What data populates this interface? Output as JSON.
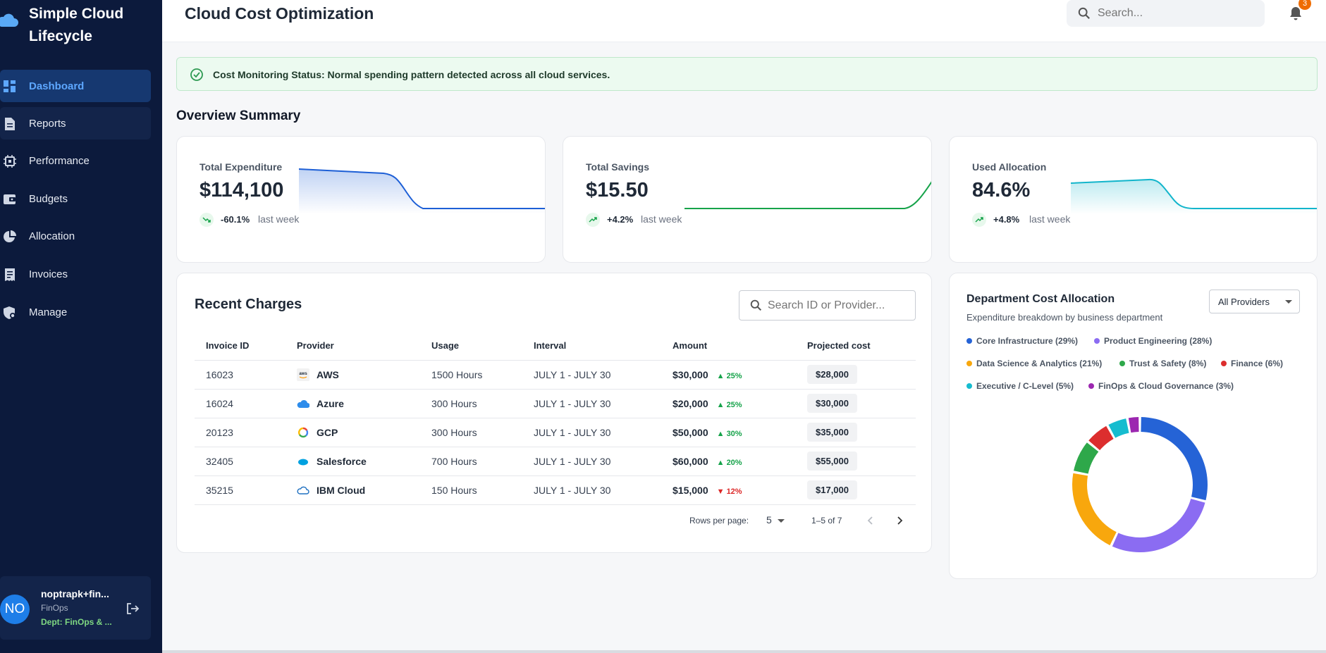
{
  "app": {
    "brand": "Simple Cloud Lifecycle"
  },
  "sidebar": {
    "items": [
      {
        "label": "Dashboard",
        "icon": "dashboard-icon"
      },
      {
        "label": "Reports",
        "icon": "document-icon"
      },
      {
        "label": "Performance",
        "icon": "chip-icon"
      },
      {
        "label": "Budgets",
        "icon": "wallet-icon"
      },
      {
        "label": "Allocation",
        "icon": "pie-chart-icon"
      },
      {
        "label": "Invoices",
        "icon": "receipt-icon"
      },
      {
        "label": "Manage",
        "icon": "shield-settings-icon"
      }
    ],
    "user": {
      "initials": "NO",
      "name": "noptrapk+fin...",
      "role": "FinOps",
      "dept": "Dept: FinOps & ..."
    }
  },
  "header": {
    "title": "Cloud Cost Optimization",
    "search_placeholder": "Search...",
    "notifications": "3"
  },
  "alert": {
    "text": "Cost Monitoring Status: Normal spending pattern detected across all cloud services."
  },
  "overview": {
    "title": "Overview Summary",
    "stats": [
      {
        "label": "Total Expenditure",
        "value": "$114,100",
        "change": "-60.1%",
        "period": "last week",
        "color": "#1d5fd6"
      },
      {
        "label": "Total Savings",
        "value": "$15.50",
        "change": "+4.2%",
        "period": "last week",
        "color": "#16a34a"
      },
      {
        "label": "Used Allocation",
        "value": "84.6%",
        "change": "+4.8%",
        "period": "last week",
        "color": "#12b5cb"
      }
    ]
  },
  "charges": {
    "title": "Recent Charges",
    "search_placeholder": "Search ID or Provider...",
    "columns": [
      "Invoice ID",
      "Provider",
      "Usage",
      "Interval",
      "Amount",
      "Projected cost"
    ],
    "rows": [
      {
        "id": "16023",
        "provider": "AWS",
        "usage": "1500 Hours",
        "interval": "JULY 1 - JULY 30",
        "amount": "$30,000",
        "change": "25%",
        "dir": "up",
        "projected": "$28,000"
      },
      {
        "id": "16024",
        "provider": "Azure",
        "usage": "300 Hours",
        "interval": "JULY 1 - JULY 30",
        "amount": "$20,000",
        "change": "25%",
        "dir": "up",
        "projected": "$30,000"
      },
      {
        "id": "20123",
        "provider": "GCP",
        "usage": "300 Hours",
        "interval": "JULY 1 - JULY 30",
        "amount": "$50,000",
        "change": "30%",
        "dir": "up",
        "projected": "$35,000"
      },
      {
        "id": "32405",
        "provider": "Salesforce",
        "usage": "700 Hours",
        "interval": "JULY 1 - JULY 30",
        "amount": "$60,000",
        "change": "20%",
        "dir": "up",
        "projected": "$55,000"
      },
      {
        "id": "35215",
        "provider": "IBM Cloud",
        "usage": "150 Hours",
        "interval": "JULY 1 - JULY 30",
        "amount": "$15,000",
        "change": "12%",
        "dir": "down",
        "projected": "$17,000"
      }
    ],
    "rows_per_page_label": "Rows per page:",
    "rows_per_page": "5",
    "range": "1–5 of 7"
  },
  "department": {
    "title": "Department Cost Allocation",
    "subtitle": "Expenditure breakdown by business department",
    "filter": "All Providers",
    "segments": [
      {
        "label": "Core Infrastructure (29%)",
        "value": 29,
        "color": "#2563d6"
      },
      {
        "label": "Product Engineering (28%)",
        "value": 28,
        "color": "#8b6cf2"
      },
      {
        "label": "Data Science & Analytics (21%)",
        "value": 21,
        "color": "#f8a70d"
      },
      {
        "label": "Trust & Safety (8%)",
        "value": 8,
        "color": "#2ea84a"
      },
      {
        "label": "Finance (6%)",
        "value": 6,
        "color": "#dc2e2e"
      },
      {
        "label": "Executive / C-Level (5%)",
        "value": 5,
        "color": "#16bccf"
      },
      {
        "label": "FinOps & Cloud Governance (3%)",
        "value": 3,
        "color": "#9c27b0"
      }
    ]
  }
}
